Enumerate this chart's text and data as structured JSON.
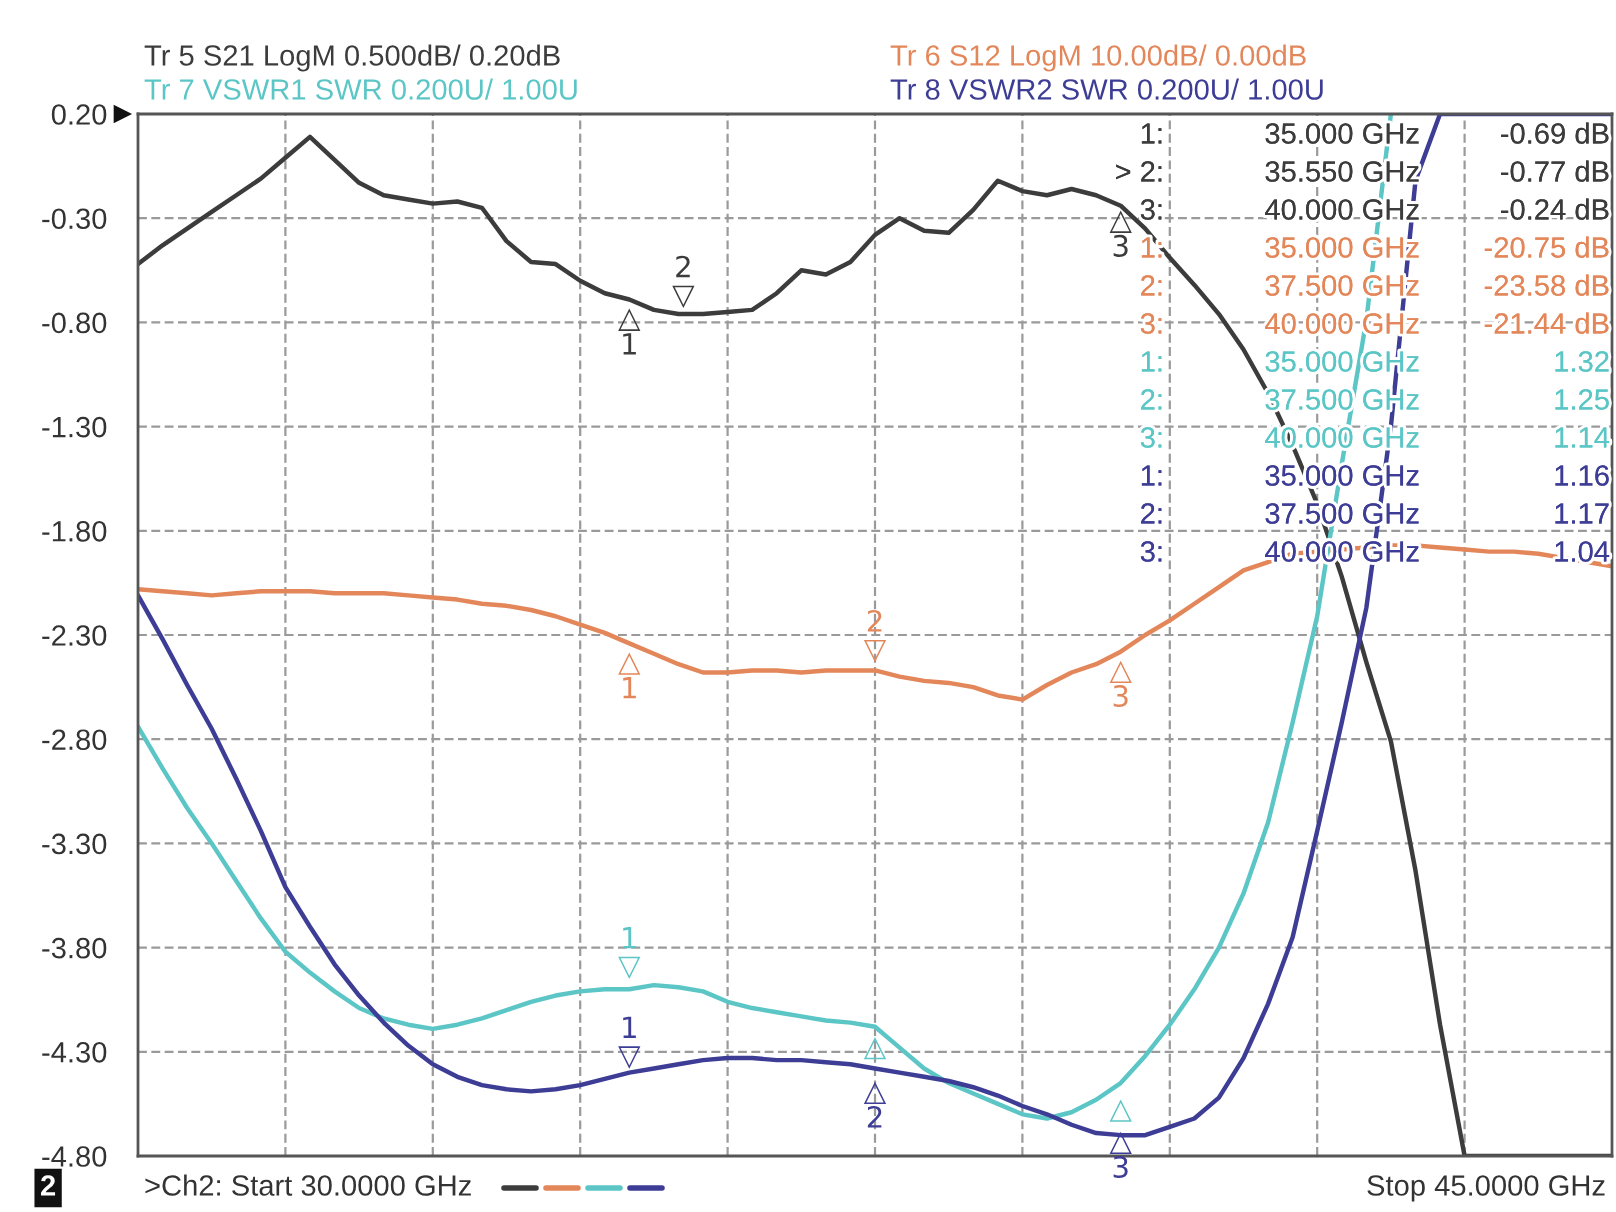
{
  "chart_data": {
    "type": "line",
    "categories": [
      null,
      null,
      null,
      null,
      null,
      null,
      null,
      null,
      null,
      null,
      null,
      null,
      null,
      null,
      null,
      null,
      null,
      null,
      null,
      null,
      null,
      null,
      null,
      null,
      null,
      null,
      null,
      null,
      null,
      null,
      null,
      null,
      null,
      null,
      null,
      null,
      null,
      null,
      null,
      null,
      null,
      null,
      null,
      null,
      null,
      null,
      null,
      null,
      null,
      null,
      null,
      null,
      null,
      null,
      null,
      null,
      null,
      null,
      null,
      null,
      null
    ],
    "ylim": [
      -4.8,
      0.2
    ],
    "yticks": [
      {
        "value": 0.2,
        "label": "0.20"
      },
      {
        "value": -0.3,
        "label": "-0.30"
      },
      {
        "value": -0.8,
        "label": "-0.80"
      },
      {
        "value": -1.3,
        "label": "-1.30"
      },
      {
        "value": -1.8,
        "label": "-1.80"
      },
      {
        "value": -2.3,
        "label": "-2.30"
      },
      {
        "value": -2.8,
        "label": "-2.80"
      },
      {
        "value": -3.3,
        "label": "-3.30"
      },
      {
        "value": -3.8,
        "label": "-3.80"
      },
      {
        "value": -4.3,
        "label": "-4.30"
      },
      {
        "value": -4.8,
        "label": "-4.80"
      }
    ],
    "tick_labels": "y",
    "grid": true,
    "series": [
      {
        "name": "Tr 5 S21 LogM 0.500dB/ 0.20dB",
        "color": "#3c3c3c",
        "values": [
          -0.52,
          -0.43,
          -0.35,
          -0.27,
          -0.19,
          -0.11,
          -0.01,
          0.09,
          -0.02,
          -0.13,
          -0.19,
          -0.21,
          -0.23,
          -0.22,
          -0.25,
          -0.41,
          -0.51,
          -0.52,
          -0.6,
          -0.66,
          -0.69,
          -0.74,
          -0.76,
          -0.76,
          -0.75,
          -0.74,
          -0.66,
          -0.55,
          -0.57,
          -0.51,
          -0.38,
          -0.3,
          -0.36,
          -0.37,
          -0.26,
          -0.12,
          -0.17,
          -0.19,
          -0.16,
          -0.19,
          -0.24,
          -0.35,
          -0.49,
          -0.62,
          -0.76,
          -0.93,
          -1.14,
          -1.39,
          -1.67,
          -2.02,
          -2.43,
          -2.81,
          -3.43,
          -4.17,
          -4.8,
          -4.8,
          -4.8,
          -4.8,
          -4.8,
          -4.8,
          -4.8
        ]
      },
      {
        "name": "Tr 6 S12 LogM 10.00dB/ 0.00dB",
        "color": "#e3875a",
        "values": [
          -2.08,
          -2.09,
          -2.1,
          -2.11,
          -2.1,
          -2.09,
          -2.09,
          -2.09,
          -2.1,
          -2.1,
          -2.1,
          -2.11,
          -2.12,
          -2.13,
          -2.15,
          -2.16,
          -2.18,
          -2.21,
          -2.25,
          -2.29,
          -2.34,
          -2.39,
          -2.44,
          -2.48,
          -2.48,
          -2.47,
          -2.47,
          -2.48,
          -2.47,
          -2.47,
          -2.47,
          -2.5,
          -2.52,
          -2.53,
          -2.55,
          -2.59,
          -2.61,
          -2.54,
          -2.48,
          -2.44,
          -2.38,
          -2.3,
          -2.23,
          -2.15,
          -2.07,
          -1.99,
          -1.95,
          -1.91,
          -1.9,
          -1.89,
          -1.88,
          -1.87,
          -1.87,
          -1.88,
          -1.89,
          -1.9,
          -1.9,
          -1.91,
          -1.93,
          -1.95,
          -1.97
        ]
      },
      {
        "name": "Tr 7 VSWR1 SWR 0.200U/ 1.00U",
        "color": "#5cc6c6",
        "values": [
          -2.74,
          -2.94,
          -3.13,
          -3.3,
          -3.48,
          -3.66,
          -3.82,
          -3.92,
          -4.01,
          -4.09,
          -4.14,
          -4.17,
          -4.19,
          -4.17,
          -4.14,
          -4.1,
          -4.06,
          -4.03,
          -4.01,
          -4.0,
          -4.0,
          -3.98,
          -3.99,
          -4.01,
          -4.06,
          -4.09,
          -4.11,
          -4.13,
          -4.15,
          -4.16,
          -4.18,
          -4.28,
          -4.38,
          -4.45,
          -4.5,
          -4.55,
          -4.6,
          -4.62,
          -4.59,
          -4.53,
          -4.45,
          -4.32,
          -4.17,
          -4.0,
          -3.8,
          -3.54,
          -3.2,
          -2.72,
          -2.21,
          -1.48,
          -0.79,
          0.2,
          null,
          null,
          null,
          null,
          null,
          null,
          null,
          null,
          null
        ]
      },
      {
        "name": "Tr 8 VSWR2 SWR 0.200U/ 1.00U",
        "color": "#3d3d96",
        "values": [
          -2.11,
          -2.32,
          -2.54,
          -2.75,
          -2.99,
          -3.24,
          -3.51,
          -3.7,
          -3.88,
          -4.03,
          -4.16,
          -4.27,
          -4.36,
          -4.42,
          -4.46,
          -4.48,
          -4.49,
          -4.48,
          -4.46,
          -4.43,
          -4.4,
          -4.38,
          -4.36,
          -4.34,
          -4.33,
          -4.33,
          -4.34,
          -4.34,
          -4.35,
          -4.36,
          -4.38,
          -4.4,
          -4.42,
          -4.44,
          -4.47,
          -4.51,
          -4.56,
          -4.6,
          -4.65,
          -4.69,
          -4.7,
          -4.7,
          -4.66,
          -4.62,
          -4.52,
          -4.33,
          -4.07,
          -3.75,
          -3.24,
          -2.72,
          -2.17,
          -1.3,
          -0.12,
          0.2,
          0.2,
          0.2,
          0.2,
          0.2,
          0.2,
          0.2,
          0.2
        ]
      }
    ],
    "annotations": [
      "1:",
      "35.000 GHz",
      "-0.69 dB",
      "> 2:",
      "35.550 GHz",
      "-0.77 dB",
      "3:",
      "40.000 GHz",
      "-0.24 dB",
      "1:",
      "35.000 GHz",
      "-20.75 dB",
      "2:",
      "37.500 GHz",
      "-23.58 dB",
      "3:",
      "40.000 GHz",
      "-21.44 dB",
      "1:",
      "35.000 GHz",
      "1.32",
      "2:",
      "37.500 GHz",
      "1.25",
      "3:",
      "40.000 GHz",
      "1.14",
      "1:",
      "35.000 GHz",
      "1.16",
      "2:",
      "37.500 GHz",
      "1.17",
      "3:",
      "40.000 GHz",
      "1.04",
      "△\n1",
      "2\n▽",
      "△\n3",
      "△\n1",
      "2\n▽",
      "△\n3",
      "1\n▽",
      "△",
      "△",
      "1\n▽",
      "△\n2",
      "△\n3",
      "2",
      ">Ch2: Start 30.0000 GHz",
      "Stop 45.0000 GHz"
    ]
  }
}
